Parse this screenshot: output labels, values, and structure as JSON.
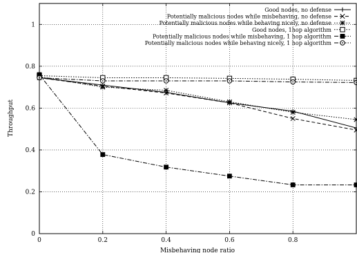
{
  "chart_data": {
    "type": "line",
    "title": "",
    "xlabel": "Misbehaving node ratio",
    "ylabel": "Throughput",
    "xlim": [
      0,
      1
    ],
    "ylim": [
      0,
      1.1
    ],
    "x_ticks": [
      0,
      0.2,
      0.4,
      0.6,
      0.8
    ],
    "y_ticks": [
      0,
      0.2,
      0.4,
      0.6,
      0.8,
      1
    ],
    "grid": true,
    "legend_position": "top-right",
    "x": [
      0,
      0.2,
      0.4,
      0.6,
      0.8,
      1.0
    ],
    "series": [
      {
        "name": "Good nodes, no defense",
        "values": [
          0.745,
          0.71,
          0.675,
          0.625,
          0.585,
          0.505
        ],
        "line": "solid",
        "marker": "plus"
      },
      {
        "name": "Potentially malicious nodes while misbehaving, no defense",
        "values": [
          0.745,
          0.705,
          0.672,
          0.625,
          0.55,
          0.495
        ],
        "line": "dashed",
        "marker": "cross"
      },
      {
        "name": "Potentially malicious nodes while behaving nicely, no defense",
        "values": [
          0.75,
          0.7,
          0.685,
          0.63,
          0.58,
          0.545
        ],
        "line": "dotted",
        "marker": "star"
      },
      {
        "name": "Good nodes, 1hop algorithm",
        "values": [
          0.755,
          0.745,
          0.745,
          0.742,
          0.738,
          0.732
        ],
        "line": "dotted",
        "marker": "square-open"
      },
      {
        "name": "Potentially malicious nodes while misbehaving, 1 hop algorithm",
        "values": [
          0.76,
          0.378,
          0.318,
          0.275,
          0.233,
          0.233
        ],
        "line": "dashdot",
        "marker": "square-filled"
      },
      {
        "name": "Potentially malicious nodes while behaving nicely, 1 hop algorithm",
        "values": [
          0.745,
          0.73,
          0.73,
          0.73,
          0.725,
          0.722
        ],
        "line": "dashdot",
        "marker": "circle-open"
      }
    ]
  }
}
